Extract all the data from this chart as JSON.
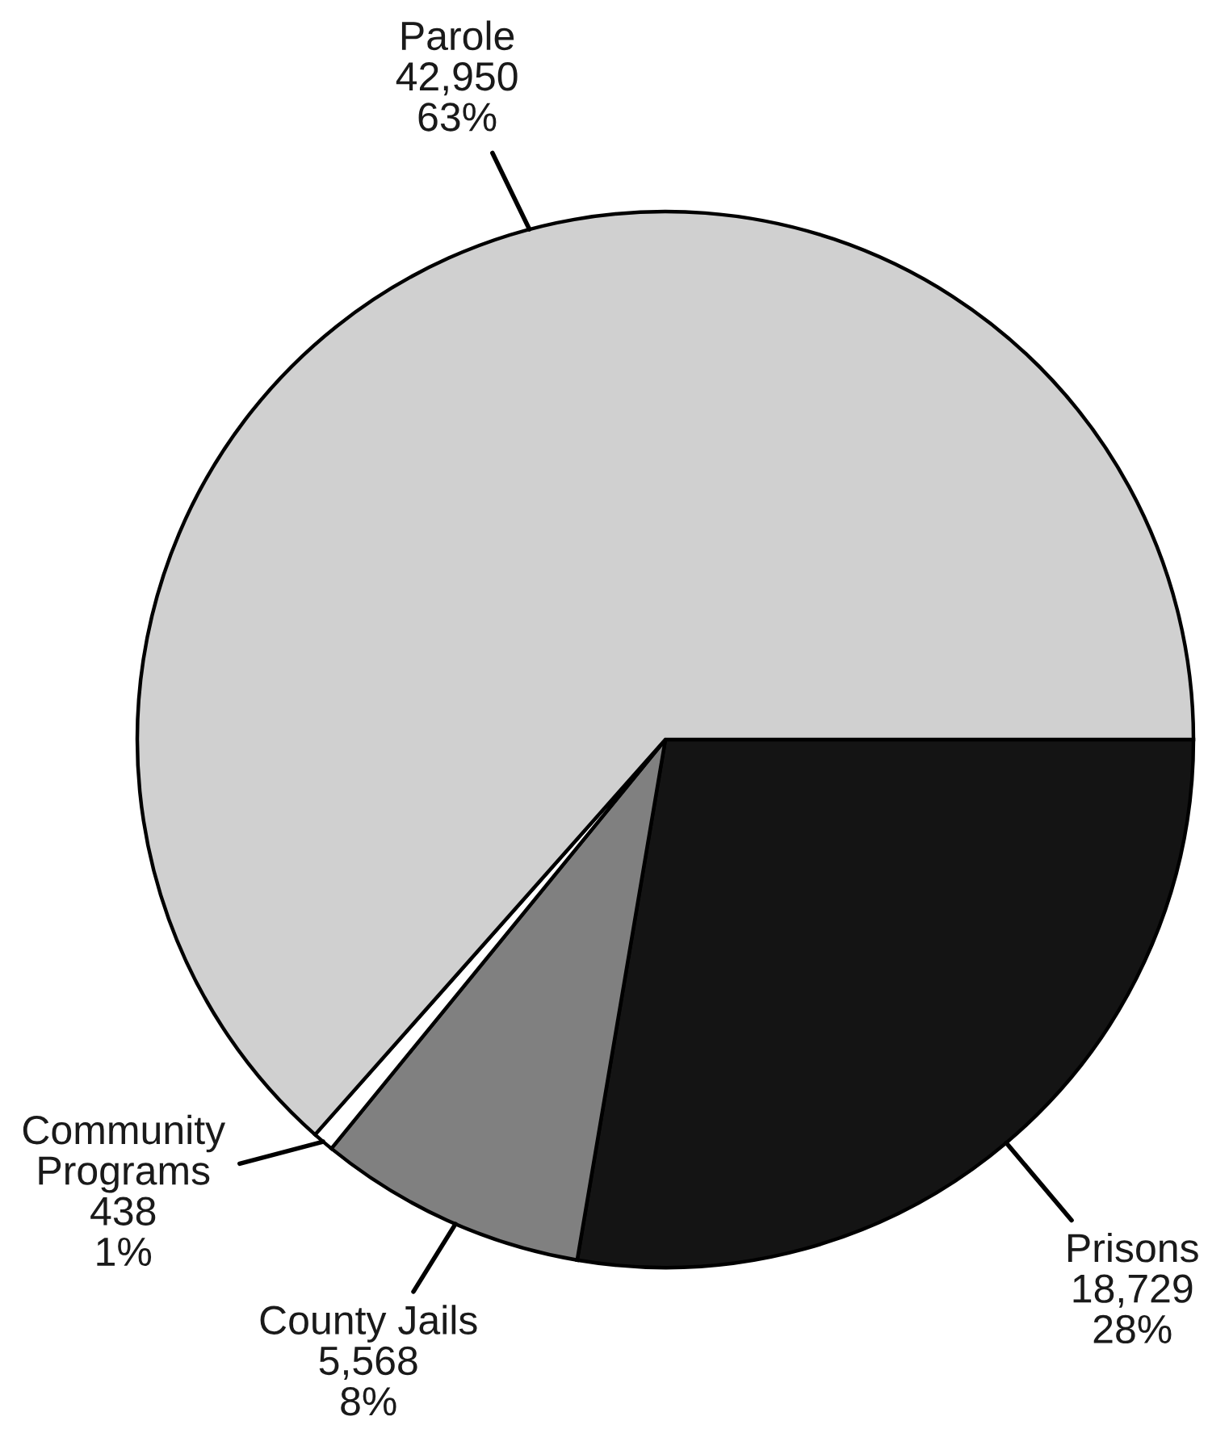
{
  "chart_data": {
    "type": "pie",
    "categories": [
      "Prisons",
      "County Jails",
      "Community\nPrograms",
      "Parole"
    ],
    "values": [
      18729,
      5568,
      438,
      42950
    ],
    "colors": [
      "#141414",
      "#808080",
      "#ffffff",
      "#d0d0d0"
    ],
    "value_labels": [
      "18,729\n28%",
      "5,568\n8%",
      "438\n1%",
      "42,950\n63%"
    ]
  }
}
